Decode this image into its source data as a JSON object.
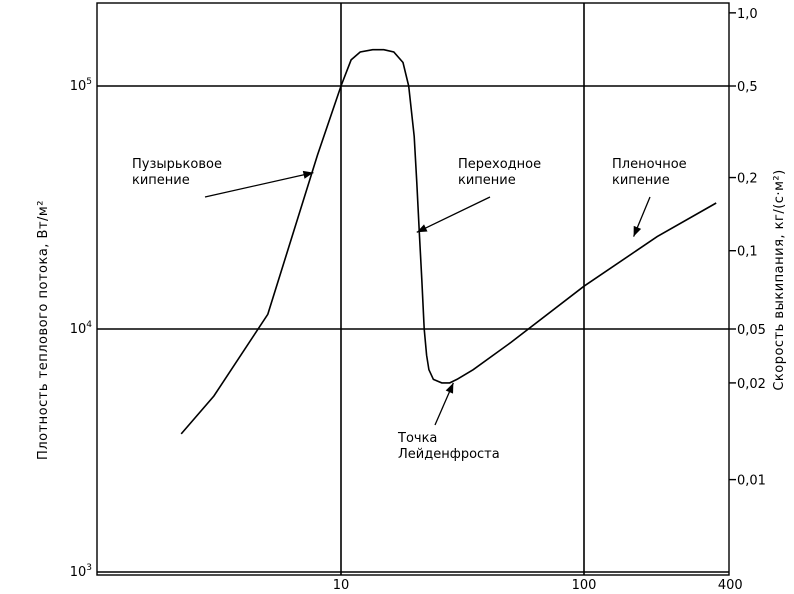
{
  "chart_data": {
    "type": "line",
    "title": "",
    "xlabel": "",
    "ylabel": "Плотность теплового потока, Вт/м²",
    "y2label": "Скорость выкипания, кг/(с·м²)",
    "xscale": "log",
    "yscale": "log",
    "xlim": [
      1,
      400
    ],
    "ylim": [
      1000,
      200000
    ],
    "x_ticks": [
      {
        "value": 10,
        "label": "10"
      },
      {
        "value": 100,
        "label": "100"
      },
      {
        "value": 400,
        "label": "400"
      }
    ],
    "y_ticks": [
      {
        "value": 1000,
        "base": "10",
        "exp": "3"
      },
      {
        "value": 10000,
        "base": "10",
        "exp": "4"
      },
      {
        "value": 100000,
        "base": "10",
        "exp": "5"
      }
    ],
    "y2_ticks": [
      {
        "value": 200000,
        "label": "1,0"
      },
      {
        "value": 100000,
        "label": "0,5"
      },
      {
        "value": 42000,
        "label": "0,2"
      },
      {
        "value": 21000,
        "label": "0,1"
      },
      {
        "value": 10000,
        "label": "0,05"
      },
      {
        "value": 6000,
        "label": "0,02"
      },
      {
        "value": 2400,
        "label": "0,01"
      }
    ],
    "grid": true,
    "series": [
      {
        "x": [
          2.2,
          3.0,
          5.0,
          8.0,
          10.0,
          11.0,
          12.0,
          13.5,
          15.0,
          16.5,
          18.0,
          19.0,
          20.0,
          20.5,
          21.0,
          21.5,
          22.0,
          22.5,
          23.0,
          24.0,
          26.0,
          28.0,
          30.0,
          35.0,
          50.0,
          100.0,
          200.0,
          350.0
        ],
        "y": [
          3700,
          5300,
          11500,
          52000,
          100000,
          128000,
          138000,
          141000,
          141000,
          138000,
          125000,
          100000,
          62000,
          40000,
          25000,
          16000,
          10000,
          7800,
          6800,
          6200,
          6000,
          6000,
          6200,
          6800,
          8800,
          15000,
          24000,
          33000
        ]
      }
    ],
    "annotations": [
      {
        "name": "nucleate",
        "lines": [
          "Пузырьковое",
          "кипение"
        ],
        "arrow_to": [
          7.7,
          44000
        ]
      },
      {
        "name": "transition",
        "lines": [
          "Переходное",
          "кипение"
        ],
        "arrow_to": [
          20.5,
          25000
        ]
      },
      {
        "name": "film",
        "lines": [
          "Пленочное",
          "кипение"
        ],
        "arrow_to": [
          160,
          24000
        ]
      },
      {
        "name": "leidenfrost",
        "lines": [
          "Точка",
          "Лейденфроста"
        ],
        "arrow_to": [
          29,
          6000
        ]
      }
    ]
  }
}
